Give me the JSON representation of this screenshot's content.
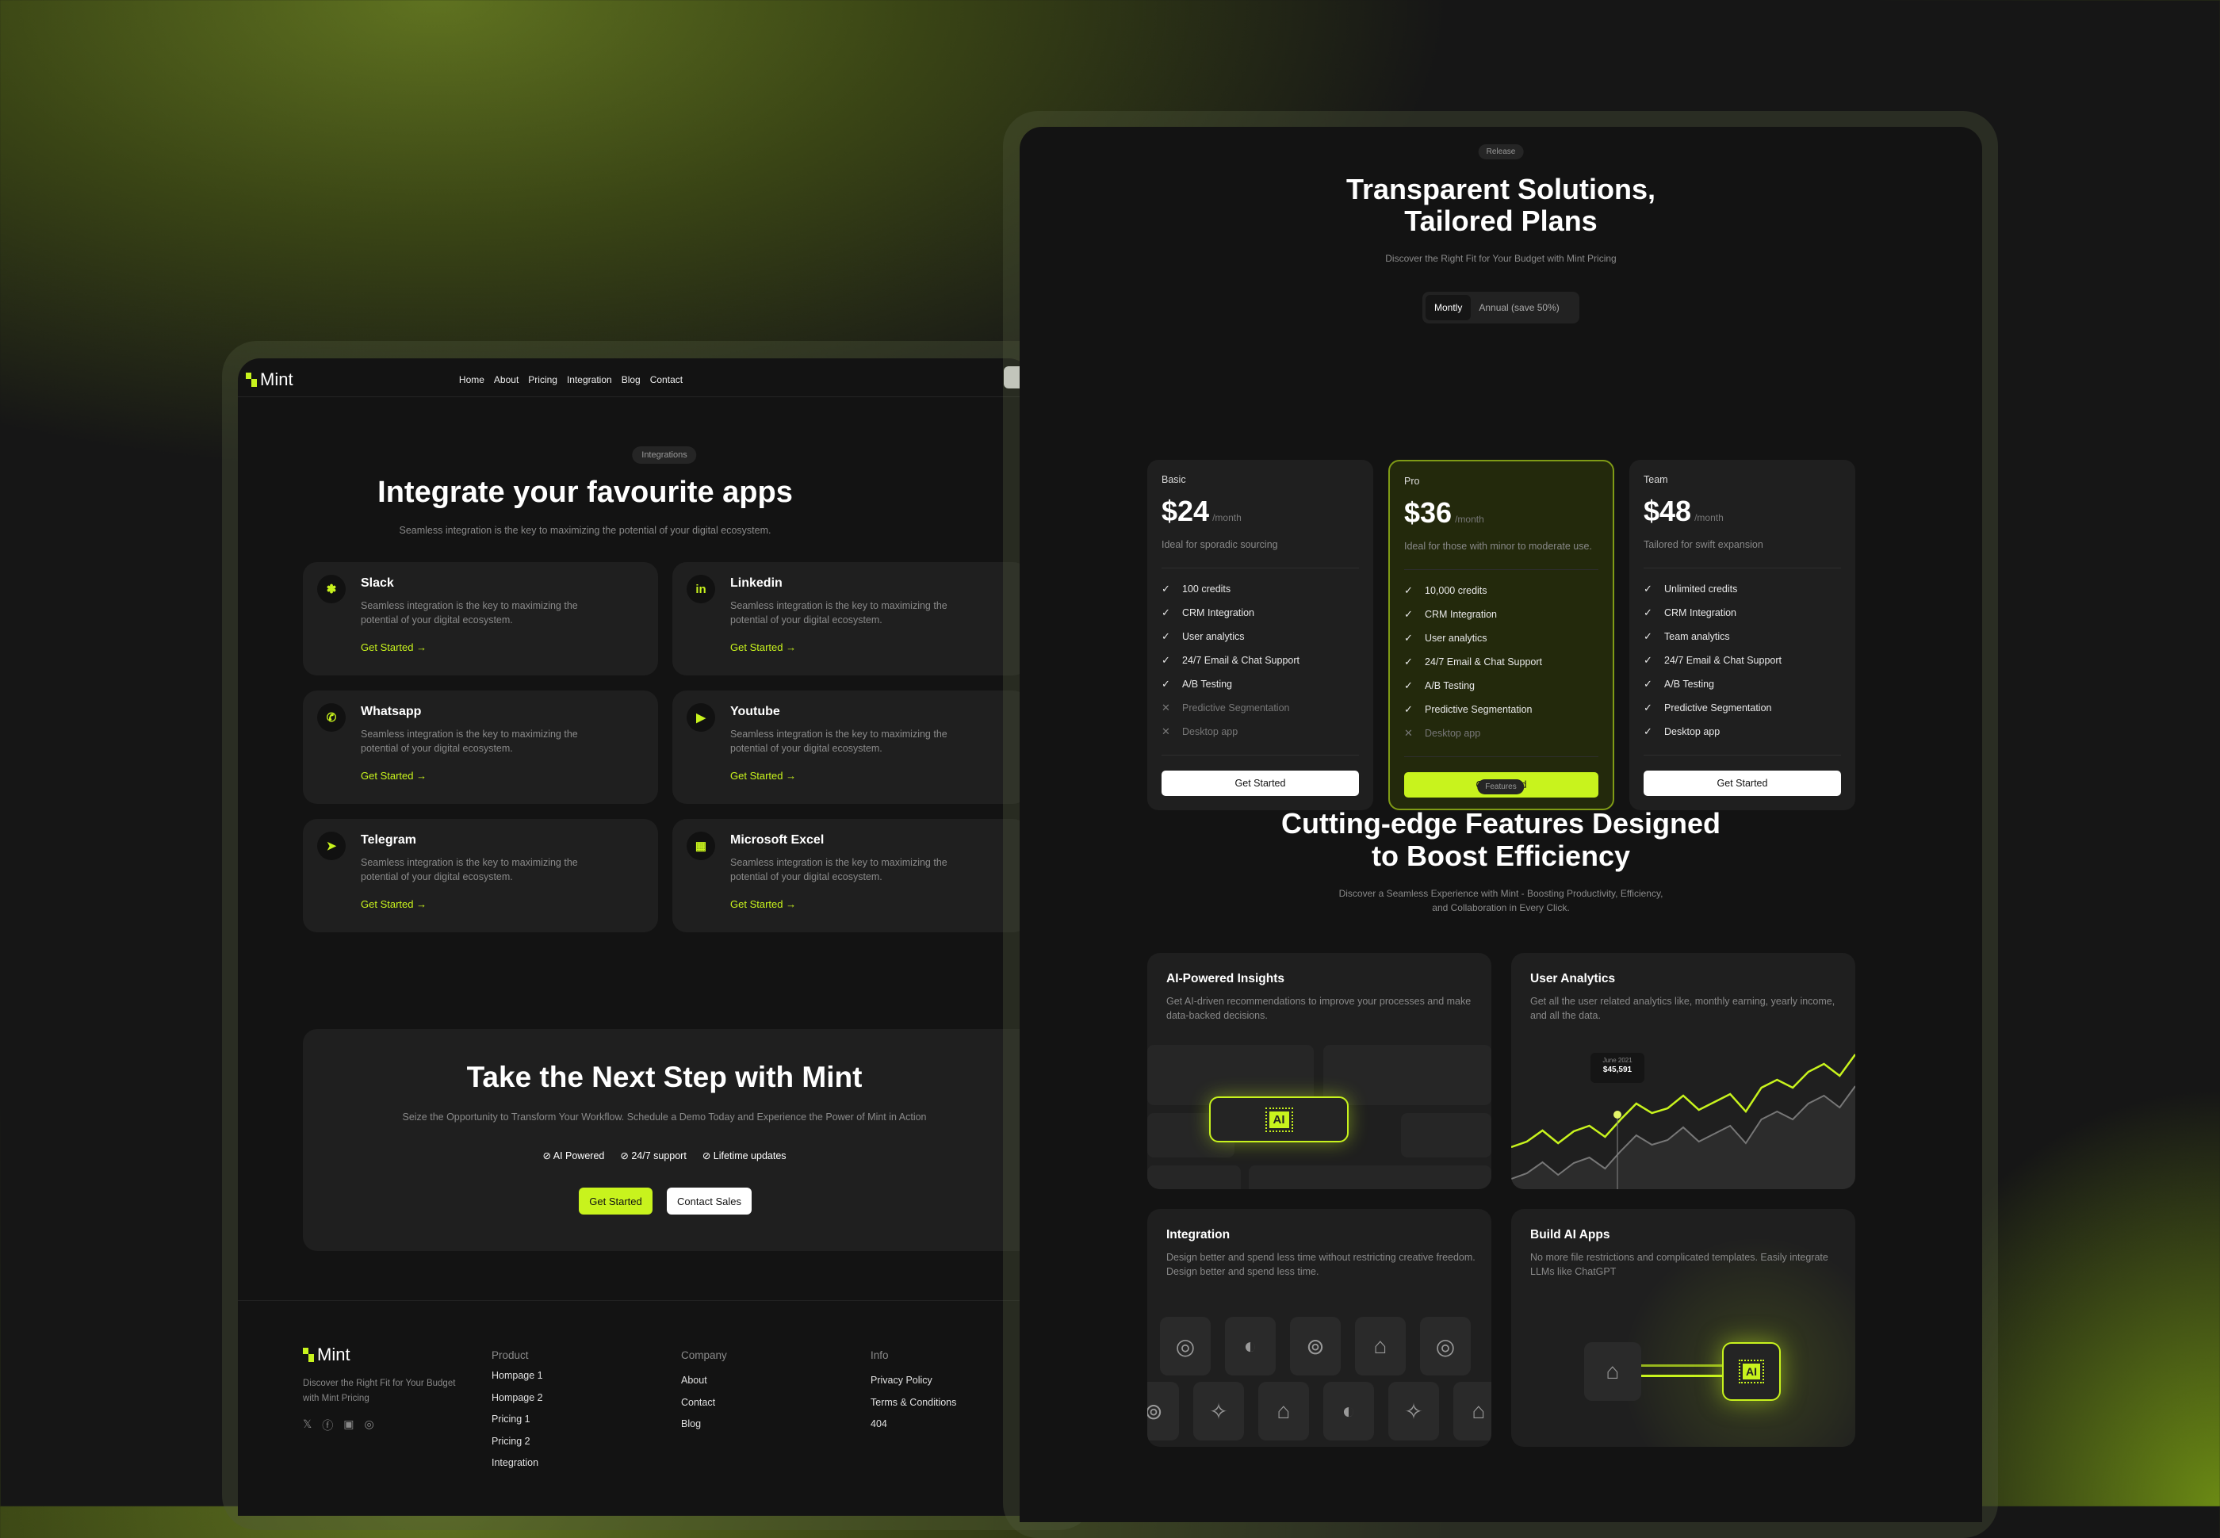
{
  "colors": {
    "accent": "#c8f31d",
    "bg": "#131313",
    "card": "#1f1f1f"
  },
  "left": {
    "nav": {
      "logo": "Mint",
      "links": [
        "Home",
        "About",
        "Pricing",
        "Integration",
        "Blog",
        "Contact"
      ]
    },
    "integrations": {
      "badge": "Integrations",
      "title": "Integrate your favourite apps",
      "subtitle": "Seamless integration is the key to maximizing the potential of your digital ecosystem.",
      "cards": [
        {
          "name": "Slack",
          "icon": "slack-icon",
          "desc": "Seamless integration is the key to maximizing the potential of your digital ecosystem.",
          "cta": "Get Started →"
        },
        {
          "name": "Linkedin",
          "icon": "linkedin-icon",
          "desc": "Seamless integration is the key to maximizing the potential of your digital ecosystem.",
          "cta": "Get Started →"
        },
        {
          "name": "Whatsapp",
          "icon": "whatsapp-icon",
          "desc": "Seamless integration is the key to maximizing the potential of your digital ecosystem.",
          "cta": "Get Started →"
        },
        {
          "name": "Youtube",
          "icon": "youtube-icon",
          "desc": "Seamless integration is the key to maximizing the potential of your digital ecosystem.",
          "cta": "Get Started →"
        },
        {
          "name": "Telegram",
          "icon": "telegram-icon",
          "desc": "Seamless integration is the key to maximizing the potential of your digital ecosystem.",
          "cta": "Get Started →"
        },
        {
          "name": "Microsoft Excel",
          "icon": "excel-icon",
          "desc": "Seamless integration is the key to maximizing the potential of your digital ecosystem.",
          "cta": "Get Started →"
        }
      ]
    },
    "cta": {
      "title": "Take the Next Step with Mint",
      "subtitle": "Seize the Opportunity to Transform Your Workflow. Schedule a Demo Today and Experience the Power of Mint in Action",
      "checks": [
        "AI Powered",
        "24/7 support",
        "Lifetime updates"
      ],
      "primary": "Get Started",
      "secondary": "Contact Sales"
    },
    "footer": {
      "logo": "Mint",
      "tagline": "Discover the Right Fit for Your Budget with Mint Pricing",
      "social": [
        "twitter-icon",
        "facebook-icon",
        "linkedin-icon",
        "instagram-icon"
      ],
      "columns": [
        {
          "title": "Product",
          "links": [
            "Hompage 1",
            "Hompage 2",
            "Pricing 1",
            "Pricing 2",
            "Integration"
          ]
        },
        {
          "title": "Company",
          "links": [
            "About",
            "Contact",
            "Blog"
          ]
        },
        {
          "title": "Info",
          "links": [
            "Privacy Policy",
            "Terms & Conditions",
            "404"
          ]
        }
      ]
    }
  },
  "right": {
    "pricing": {
      "badge": "Release",
      "title1": "Transparent Solutions,",
      "title2": "Tailored Plans",
      "subtitle": "Discover the Right Fit for Your Budget with Mint Pricing",
      "toggle": {
        "options": [
          "Montly",
          "Annual (save 50%)"
        ],
        "selected": "Montly"
      },
      "plans": [
        {
          "name": "Basic",
          "price": "$24",
          "period": "/month",
          "desc": "Ideal for sporadic sourcing",
          "cta": "Get Started",
          "features": [
            [
              "100 credits",
              true
            ],
            [
              "CRM Integration",
              true
            ],
            [
              "User analytics",
              true
            ],
            [
              "24/7 Email & Chat Support",
              true
            ],
            [
              "A/B Testing",
              true
            ],
            [
              "Predictive Segmentation",
              false
            ],
            [
              "Desktop app",
              false
            ]
          ]
        },
        {
          "name": "Pro",
          "price": "$36",
          "period": "/month",
          "desc": "Ideal for those with minor to moderate use.",
          "cta": "Get Started",
          "highlight": true,
          "features": [
            [
              "10,000 credits",
              true
            ],
            [
              "CRM Integration",
              true
            ],
            [
              "User analytics",
              true
            ],
            [
              "24/7 Email & Chat Support",
              true
            ],
            [
              "A/B Testing",
              true
            ],
            [
              "Predictive Segmentation",
              true
            ],
            [
              "Desktop app",
              false
            ]
          ]
        },
        {
          "name": "Team",
          "price": "$48",
          "period": "/month",
          "desc": "Tailored for swift expansion",
          "cta": "Get Started",
          "features": [
            [
              "Unlimited credits",
              true
            ],
            [
              "CRM Integration",
              true
            ],
            [
              "Team analytics",
              true
            ],
            [
              "24/7 Email & Chat Support",
              true
            ],
            [
              "A/B Testing",
              true
            ],
            [
              "Predictive Segmentation",
              true
            ],
            [
              "Desktop app",
              true
            ]
          ]
        }
      ]
    },
    "features": {
      "badge": "Features",
      "title1": "Cutting-edge Features Designed",
      "title2": "to Boost Efficiency",
      "subtitle1": "Discover a Seamless Experience with Mint - Boosting Productivity, Efficiency,",
      "subtitle2": "and Collaboration in Every Click.",
      "cards": [
        {
          "title": "AI-Powered Insights",
          "desc": "Get AI-driven recommendations to improve your processes and make data-backed decisions.",
          "chip": "AI"
        },
        {
          "title": "User Analytics",
          "desc": "Get all the user related analytics like, monthly earning, yearly income, and all the data.",
          "tooltip_date": "June 2021",
          "tooltip_value": "$45,591"
        },
        {
          "title": "Integration",
          "desc": "Design better and spend less time without restricting creative freedom. Design better and spend less time."
        },
        {
          "title": "Build AI Apps",
          "desc": "No more file restrictions and complicated templates. Easily integrate LLMs like ChatGPT",
          "chip": "AI"
        }
      ]
    }
  }
}
